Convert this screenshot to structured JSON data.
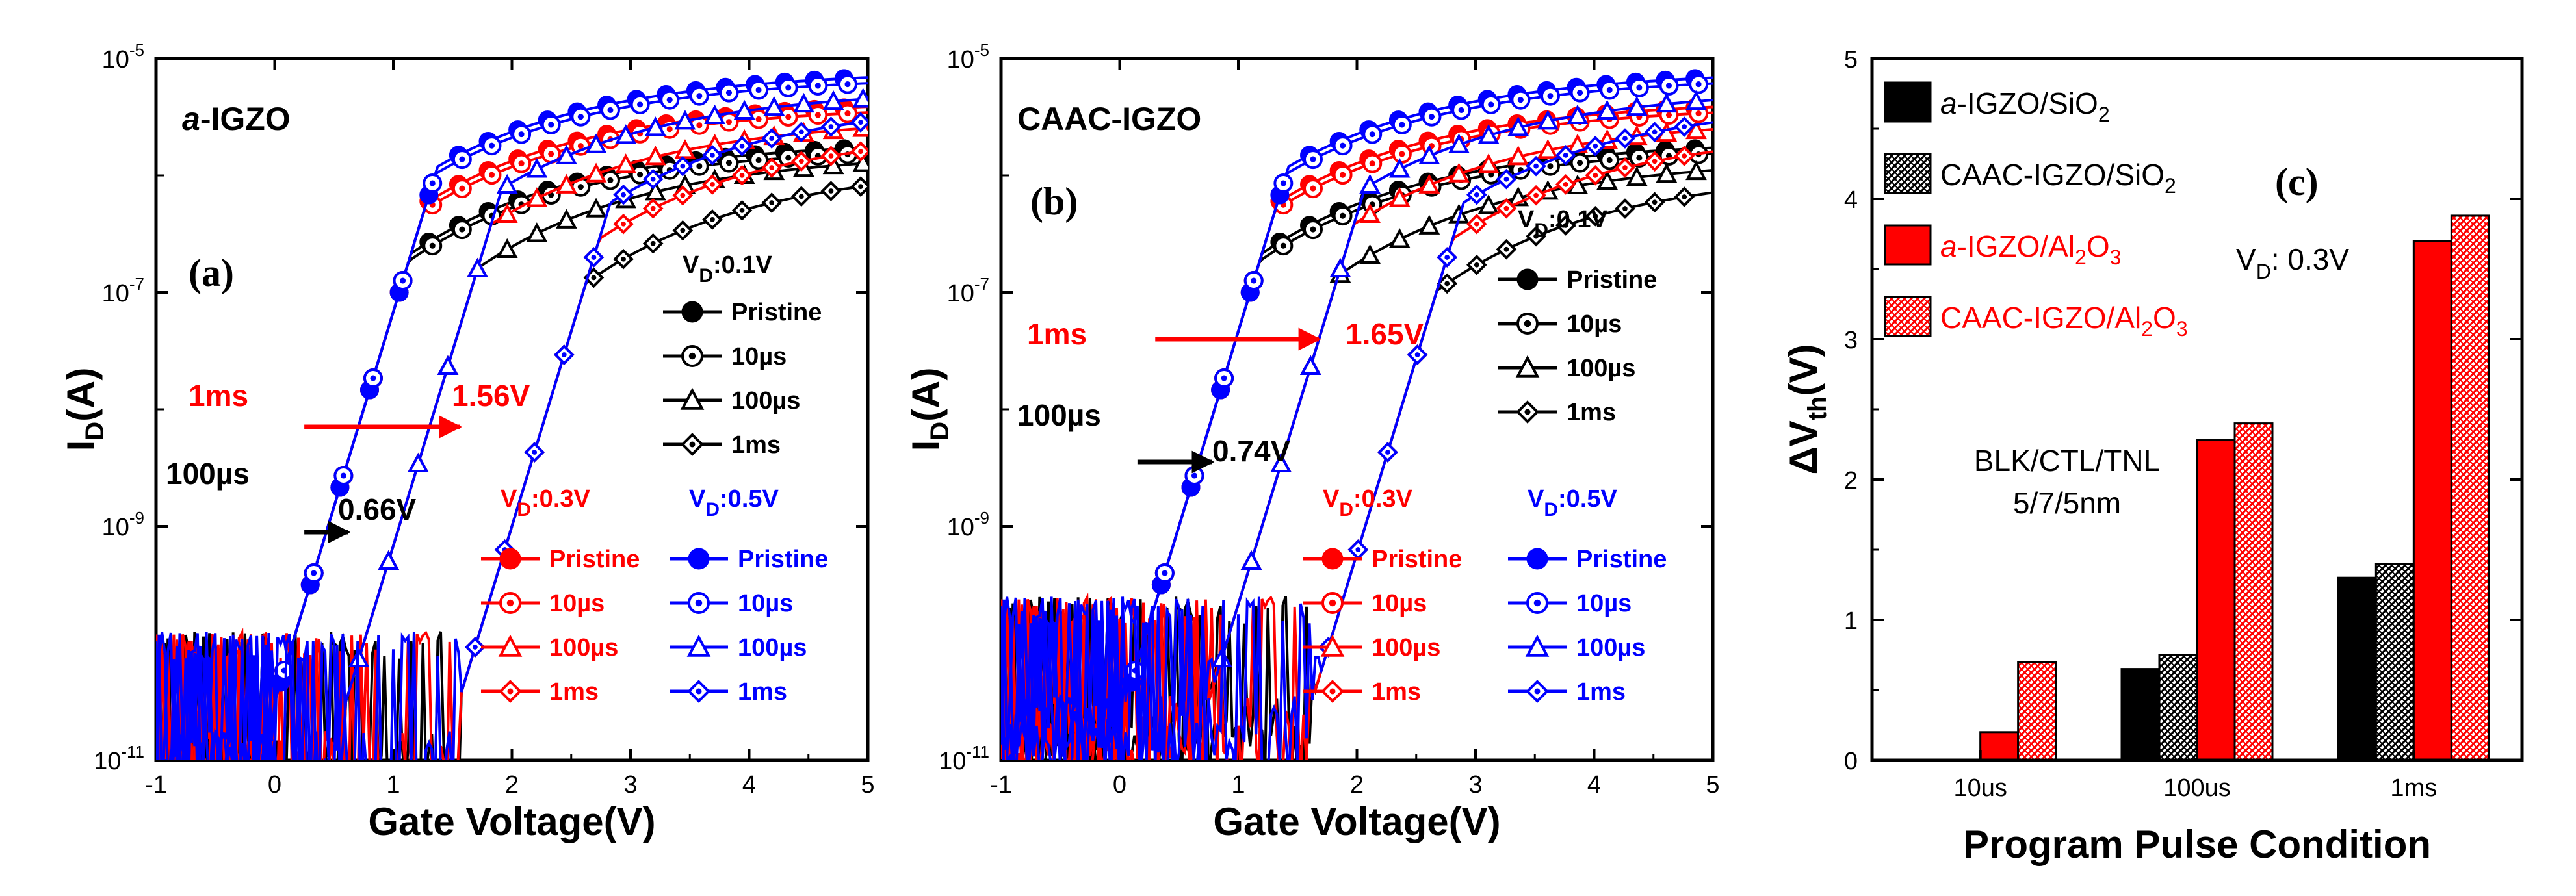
{
  "colors": {
    "pristine_01": "#000000",
    "v03": "#ff0000",
    "v05": "#0000ff",
    "grid": "#000000"
  },
  "chart_data": [
    {
      "id": "a",
      "type": "line",
      "panel_label": "(a)",
      "title": "a-IGZO",
      "title_italic": "a",
      "title_rest": "-IGZO",
      "xlabel": "Gate Voltage(V)",
      "ylabel": "I",
      "ylabel_sub": "D",
      "ylabel_rest": "(A)",
      "xlim": [
        -1,
        5
      ],
      "ylim_log10": [
        -11,
        -5
      ],
      "xticks": [
        "-1",
        "0",
        "1",
        "2",
        "3",
        "4",
        "5"
      ],
      "yticks": [
        {
          "base": "10",
          "exp": "-11"
        },
        {
          "base": "10",
          "exp": "-9"
        },
        {
          "base": "10",
          "exp": "-7"
        },
        {
          "base": "10",
          "exp": "-5"
        }
      ],
      "vd_groups": [
        {
          "label_main": "V",
          "label_sub": "D",
          "label_rest": ":0.1V",
          "color": "#000000",
          "entries": [
            "Pristine",
            "10µs",
            "100µs",
            "1ms"
          ]
        },
        {
          "label_main": "V",
          "label_sub": "D",
          "label_rest": ":0.3V",
          "color": "#ff0000",
          "entries": [
            "Pristine",
            "10µs",
            "100µs",
            "1ms"
          ]
        },
        {
          "label_main": "V",
          "label_sub": "D",
          "label_rest": ":0.5V",
          "color": "#0000ff",
          "entries": [
            "Pristine",
            "10µs",
            "100µs",
            "1ms"
          ]
        }
      ],
      "annotations": [
        {
          "text": "1ms",
          "color": "#ff0000"
        },
        {
          "text": "1.56V",
          "color": "#ff0000"
        },
        {
          "text": "100µs",
          "color": "#000000"
        },
        {
          "text": "0.66V",
          "color": "#000000"
        }
      ],
      "shift_arrows": [
        {
          "from_v": 0.25,
          "to_v": 1.56,
          "log_i": -8.15,
          "color": "#ff0000"
        },
        {
          "from_v": 0.25,
          "to_v": 0.62,
          "log_i": -9.05,
          "color": "#000000"
        }
      ],
      "curve_vth": [
        0.0,
        0.6,
        1.55
      ],
      "noise_floor_log10": -10.8,
      "series": [
        {
          "name": "VD 0.1V Pristine",
          "vd": 0.1,
          "condition": "Pristine",
          "vth": 0.0,
          "sat_log10": -5.7,
          "marker": "circle-filled",
          "color": "#000000"
        },
        {
          "name": "VD 0.1V 10µs",
          "vd": 0.1,
          "condition": "10µs",
          "vth": 0.0,
          "sat_log10": -5.75,
          "marker": "circle-dot",
          "color": "#000000"
        },
        {
          "name": "VD 0.1V 100µs",
          "vd": 0.1,
          "condition": "100µs",
          "vth": 0.6,
          "sat_log10": -5.8,
          "marker": "triangle",
          "color": "#000000"
        },
        {
          "name": "VD 0.1V 1ms",
          "vd": 0.1,
          "condition": "1ms",
          "vth": 1.55,
          "sat_log10": -5.9,
          "marker": "diamond",
          "color": "#000000"
        },
        {
          "name": "VD 0.3V Pristine",
          "vd": 0.3,
          "condition": "Pristine",
          "vth": 0.0,
          "sat_log10": -5.35,
          "marker": "circle-filled",
          "color": "#ff0000"
        },
        {
          "name": "VD 0.3V 10µs",
          "vd": 0.3,
          "condition": "10µs",
          "vth": 0.0,
          "sat_log10": -5.4,
          "marker": "circle-dot",
          "color": "#ff0000"
        },
        {
          "name": "VD 0.3V 100µs",
          "vd": 0.3,
          "condition": "100µs",
          "vth": 0.6,
          "sat_log10": -5.5,
          "marker": "triangle",
          "color": "#ff0000"
        },
        {
          "name": "VD 0.3V 1ms",
          "vd": 0.3,
          "condition": "1ms",
          "vth": 1.55,
          "sat_log10": -5.6,
          "marker": "diamond",
          "color": "#ff0000"
        },
        {
          "name": "VD 0.5V Pristine",
          "vd": 0.5,
          "condition": "Pristine",
          "vth": 0.0,
          "sat_log10": -5.1,
          "marker": "circle-filled",
          "color": "#0000ff"
        },
        {
          "name": "VD 0.5V 10µs",
          "vd": 0.5,
          "condition": "10µs",
          "vth": 0.0,
          "sat_log10": -5.15,
          "marker": "circle-dot",
          "color": "#0000ff"
        },
        {
          "name": "VD 0.5V 100µs",
          "vd": 0.5,
          "condition": "100µs",
          "vth": 0.6,
          "sat_log10": -5.25,
          "marker": "triangle",
          "color": "#0000ff"
        },
        {
          "name": "VD 0.5V 1ms",
          "vd": 0.5,
          "condition": "1ms",
          "vth": 1.55,
          "sat_log10": -5.35,
          "marker": "diamond",
          "color": "#0000ff"
        }
      ]
    },
    {
      "id": "b",
      "type": "line",
      "panel_label": "(b)",
      "title": "CAAC-IGZO",
      "title_italic": "",
      "title_rest": "CAAC-IGZO",
      "xlabel": "Gate Voltage(V)",
      "ylabel": "I",
      "ylabel_sub": "D",
      "ylabel_rest": "(A)",
      "xlim": [
        -1,
        5
      ],
      "ylim_log10": [
        -11,
        -5
      ],
      "xticks": [
        "-1",
        "0",
        "1",
        "2",
        "3",
        "4",
        "5"
      ],
      "yticks": [
        {
          "base": "10",
          "exp": "-11"
        },
        {
          "base": "10",
          "exp": "-9"
        },
        {
          "base": "10",
          "exp": "-7"
        },
        {
          "base": "10",
          "exp": "-5"
        }
      ],
      "vd_groups": [
        {
          "label_main": "V",
          "label_sub": "D",
          "label_rest": ":0.1V",
          "color": "#000000",
          "entries": [
            "Pristine",
            "10µs",
            "100µs",
            "1ms"
          ]
        },
        {
          "label_main": "V",
          "label_sub": "D",
          "label_rest": ":0.3V",
          "color": "#ff0000",
          "entries": [
            "Pristine",
            "10µs",
            "100µs",
            "1ms"
          ]
        },
        {
          "label_main": "V",
          "label_sub": "D",
          "label_rest": ":0.5V",
          "color": "#0000ff",
          "entries": [
            "Pristine",
            "10µs",
            "100µs",
            "1ms"
          ]
        }
      ],
      "annotations": [
        {
          "text": "1ms",
          "color": "#ff0000"
        },
        {
          "text": "1.65V",
          "color": "#ff0000"
        },
        {
          "text": "100µs",
          "color": "#000000"
        },
        {
          "text": "0.74V",
          "color": "#000000"
        }
      ],
      "shift_arrows": [
        {
          "from_v": 0.3,
          "to_v": 1.68,
          "log_i": -7.4,
          "color": "#ff0000"
        },
        {
          "from_v": 0.15,
          "to_v": 0.78,
          "log_i": -8.45,
          "color": "#000000"
        }
      ],
      "curve_vth": [
        0.05,
        0.75,
        1.62
      ],
      "noise_floor_log10": -10.5,
      "series": [
        {
          "name": "VD 0.1V Pristine",
          "vd": 0.1,
          "condition": "Pristine",
          "vth": 0.05,
          "sat_log10": -5.7,
          "marker": "circle-filled",
          "color": "#000000"
        },
        {
          "name": "VD 0.1V 10µs",
          "vd": 0.1,
          "condition": "10µs",
          "vth": 0.05,
          "sat_log10": -5.75,
          "marker": "circle-dot",
          "color": "#000000"
        },
        {
          "name": "VD 0.1V 100µs",
          "vd": 0.1,
          "condition": "100µs",
          "vth": 0.75,
          "sat_log10": -5.85,
          "marker": "triangle",
          "color": "#000000"
        },
        {
          "name": "VD 0.1V 1ms",
          "vd": 0.1,
          "condition": "1ms",
          "vth": 1.62,
          "sat_log10": -5.95,
          "marker": "diamond",
          "color": "#000000"
        },
        {
          "name": "VD 0.3V Pristine",
          "vd": 0.3,
          "condition": "Pristine",
          "vth": 0.05,
          "sat_log10": -5.35,
          "marker": "circle-filled",
          "color": "#ff0000"
        },
        {
          "name": "VD 0.3V 10µs",
          "vd": 0.3,
          "condition": "10µs",
          "vth": 0.05,
          "sat_log10": -5.4,
          "marker": "circle-dot",
          "color": "#ff0000"
        },
        {
          "name": "VD 0.3V 100µs",
          "vd": 0.3,
          "condition": "100µs",
          "vth": 0.75,
          "sat_log10": -5.5,
          "marker": "triangle",
          "color": "#ff0000"
        },
        {
          "name": "VD 0.3V 1ms",
          "vd": 0.3,
          "condition": "1ms",
          "vth": 1.62,
          "sat_log10": -5.6,
          "marker": "diamond",
          "color": "#ff0000"
        },
        {
          "name": "VD 0.5V Pristine",
          "vd": 0.5,
          "condition": "Pristine",
          "vth": 0.05,
          "sat_log10": -5.1,
          "marker": "circle-filled",
          "color": "#0000ff"
        },
        {
          "name": "VD 0.5V 10µs",
          "vd": 0.5,
          "condition": "10µs",
          "vth": 0.05,
          "sat_log10": -5.15,
          "marker": "circle-dot",
          "color": "#0000ff"
        },
        {
          "name": "VD 0.5V 100µs",
          "vd": 0.5,
          "condition": "100µs",
          "vth": 0.75,
          "sat_log10": -5.25,
          "marker": "triangle",
          "color": "#0000ff"
        },
        {
          "name": "VD 0.5V 1ms",
          "vd": 0.5,
          "condition": "1ms",
          "vth": 1.62,
          "sat_log10": -5.35,
          "marker": "diamond",
          "color": "#0000ff"
        }
      ]
    },
    {
      "id": "c",
      "type": "bar",
      "panel_label": "(c)",
      "xlabel": "Program Pulse Condition",
      "ylabel": "ΔV",
      "ylabel_sub": "th",
      "ylabel_rest": "(V)",
      "categories": [
        "10us",
        "100us",
        "1ms"
      ],
      "ylim": [
        0,
        5
      ],
      "yticks": [
        "0",
        "1",
        "2",
        "3",
        "4",
        "5"
      ],
      "vd_note": {
        "main": "V",
        "sub": "D",
        "rest": ": 0.3V"
      },
      "stack_note": [
        "BLK/CTL/TNL",
        "5/7/5nm"
      ],
      "series": [
        {
          "name": "a-IGZO/SiO2",
          "parts": [
            {
              "t": "a",
              "i": true
            },
            {
              "t": "-IGZO/SiO"
            },
            {
              "t": "2",
              "sub": true
            }
          ],
          "color": "#000000",
          "pattern": "solid-black",
          "values": [
            0,
            0.65,
            1.3
          ]
        },
        {
          "name": "CAAC-IGZO/SiO2",
          "parts": [
            {
              "t": "CAAC-IGZO/SiO"
            },
            {
              "t": "2",
              "sub": true
            }
          ],
          "color": "#000000",
          "pattern": "hatch-black",
          "values": [
            0,
            0.75,
            1.4
          ]
        },
        {
          "name": "a-IGZO/Al2O3",
          "parts": [
            {
              "t": "a",
              "i": true
            },
            {
              "t": "-IGZO/Al"
            },
            {
              "t": "2",
              "sub": true
            },
            {
              "t": "O"
            },
            {
              "t": "3",
              "sub": true
            }
          ],
          "color": "#ff0000",
          "pattern": "solid-red",
          "values": [
            0.2,
            2.28,
            3.7
          ]
        },
        {
          "name": "CAAC-IGZO/Al2O3",
          "parts": [
            {
              "t": "CAAC-IGZO/Al"
            },
            {
              "t": "2",
              "sub": true
            },
            {
              "t": "O"
            },
            {
              "t": "3",
              "sub": true
            }
          ],
          "color": "#ff0000",
          "pattern": "hatch-red",
          "values": [
            0.7,
            2.4,
            3.88
          ]
        }
      ]
    }
  ]
}
